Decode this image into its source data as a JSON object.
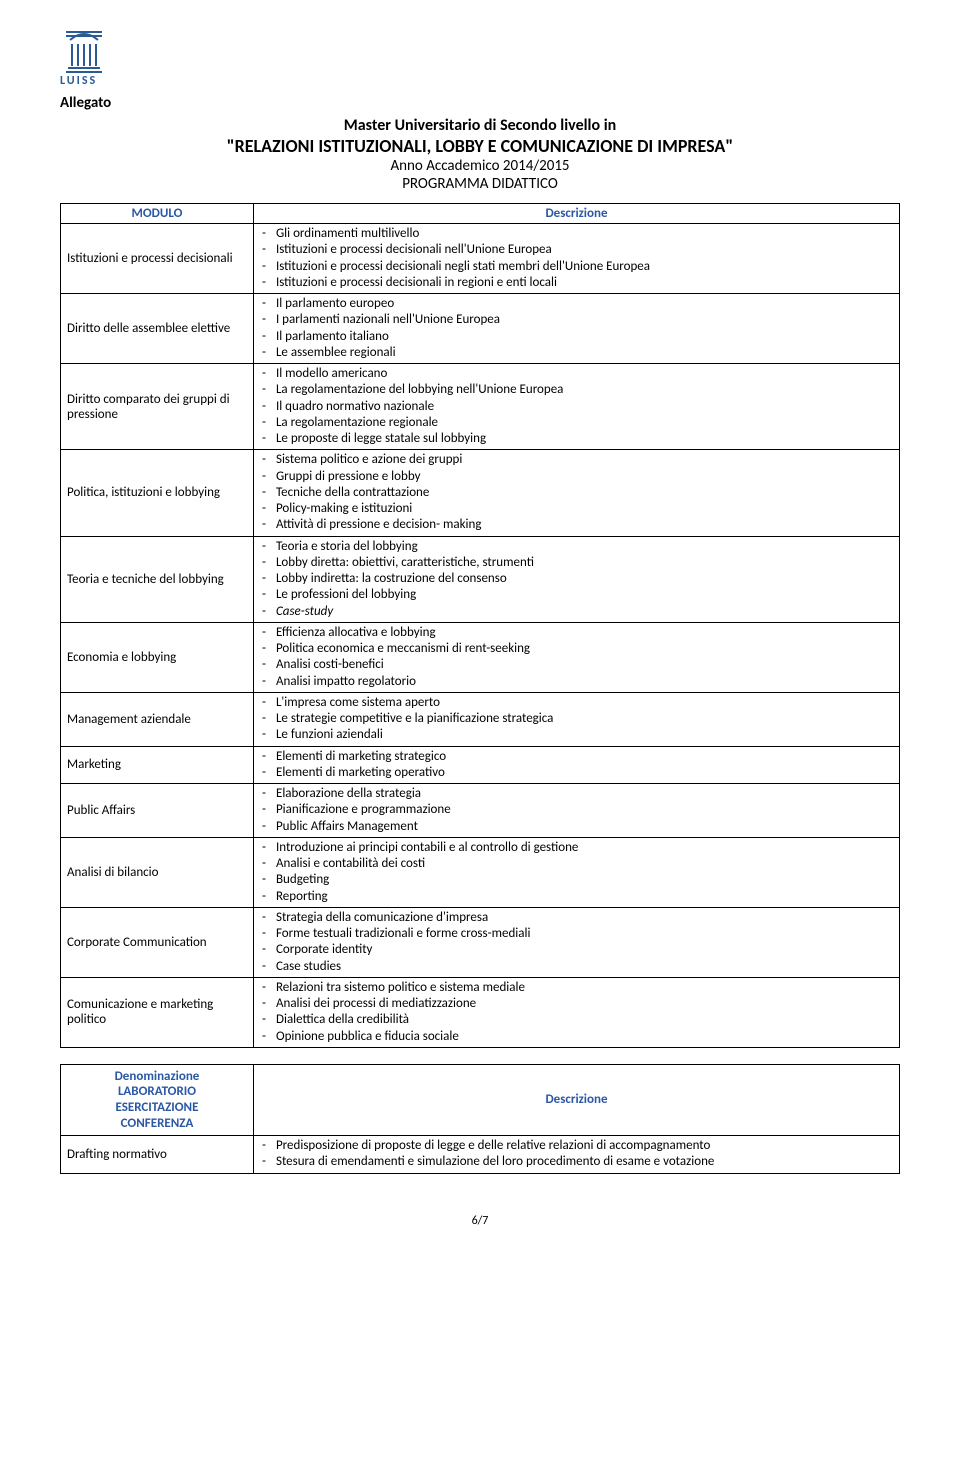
{
  "logo_text": "LUISS",
  "section_label": "Allegato",
  "title_line1": "Master Universitario di Secondo livello in",
  "title_line2": "\"RELAZIONI ISTITUZIONALI, LOBBY E COMUNICAZIONE DI IMPRESA\"",
  "title_line3": "Anno Accademico 2014/2015",
  "title_line4": "PROGRAMMA DIDATTICO",
  "table1": {
    "header_modulo": "MODULO",
    "header_desc": "Descrizione",
    "rows": [
      {
        "mod": "Istituzioni e processi decisionali",
        "items": [
          "Gli ordinamenti multilivello",
          "Istituzioni e processi decisionali nell'Unione Europea",
          "Istituzioni e processi decisionali negli stati membri dell'Unione Europea",
          "Istituzioni e processi decisionali in regioni e enti locali"
        ]
      },
      {
        "mod": "Diritto delle assemblee elettive",
        "items": [
          "Il parlamento europeo",
          "I parlamenti nazionali nell'Unione Europea",
          "Il parlamento italiano",
          "Le assemblee regionali"
        ]
      },
      {
        "mod": "Diritto comparato dei gruppi di pressione",
        "items": [
          "Il modello americano",
          "La regolamentazione del lobbying nell'Unione Europea",
          "Il quadro normativo nazionale",
          "La regolamentazione regionale",
          "Le proposte di legge statale sul lobbying"
        ]
      },
      {
        "mod": "Politica, istituzioni e lobbying",
        "items": [
          "Sistema politico e azione dei gruppi",
          "Gruppi di pressione e lobby",
          "Tecniche della contrattazione",
          "Policy-making e istituzioni",
          "Attività di pressione e decision- making"
        ]
      },
      {
        "mod": "Teoria e tecniche del lobbying",
        "items": [
          "Teoria e storia del lobbying",
          "Lobby diretta: obiettivi, caratteristiche, strumenti",
          "Lobby indiretta: la costruzione del consenso",
          "Le professioni del lobbying",
          " Case-study"
        ],
        "italic_last": true
      },
      {
        "mod": "Economia e lobbying",
        "items": [
          "Efficienza allocativa e lobbying",
          "Politica economica e meccanismi di rent-seeking",
          "Analisi costi-benefici",
          "Analisi impatto regolatorio"
        ]
      },
      {
        "mod": "Management aziendale",
        "items": [
          "L'impresa come sistema aperto",
          "Le strategie competitive e la pianificazione strategica",
          "Le funzioni aziendali"
        ]
      },
      {
        "mod": "Marketing",
        "items": [
          "Elementi di marketing strategico",
          "Elementi di marketing operativo"
        ]
      },
      {
        "mod": "Public Affairs",
        "items": [
          "Elaborazione della strategia",
          "Pianificazione e programmazione",
          "Public Affairs Management"
        ]
      },
      {
        "mod": "Analisi di bilancio",
        "items": [
          "Introduzione ai principi contabili e al controllo di gestione",
          "Analisi e contabilità dei costi",
          "Budgeting",
          "Reporting"
        ]
      },
      {
        "mod": "Corporate Communication",
        "items": [
          "Strategia della comunicazione d'impresa",
          "Forme testuali tradizionali e forme cross-mediali",
          "Corporate identity",
          "Case studies"
        ]
      },
      {
        "mod": "Comunicazione e marketing politico",
        "items": [
          "Relazioni tra sistemo politico e sistema mediale",
          "Analisi dei processi di mediatizzazione",
          "Dialettica della credibilità",
          "Opinione pubblica e fiducia sociale"
        ]
      }
    ]
  },
  "table2": {
    "header_lab_l1": "Denominazione",
    "header_lab_l2": "LABORATORIO",
    "header_lab_l3": "ESERCITAZIONE",
    "header_lab_l4": "CONFERENZA",
    "header_desc": "Descrizione",
    "rows": [
      {
        "mod": "Drafting normativo",
        "items": [
          "Predisposizione di proposte di legge e delle relative relazioni di accompagnamento",
          "Stesura di emendamenti e simulazione del loro procedimento di esame e votazione"
        ]
      }
    ]
  },
  "page_num": "6/7",
  "colors": {
    "accent": "#2b58a5",
    "logo": "#2a5b92"
  }
}
